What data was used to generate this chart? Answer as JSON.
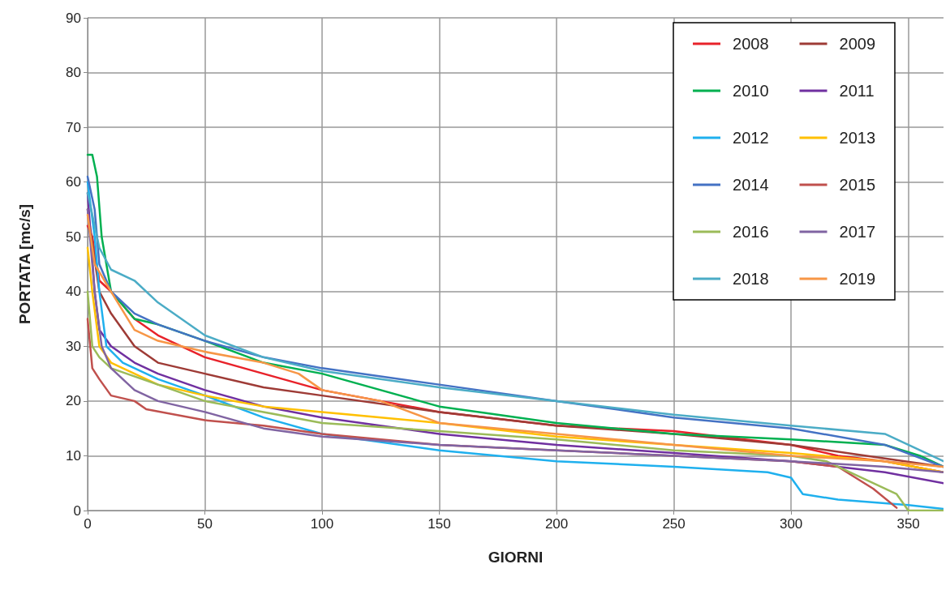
{
  "chart_data": {
    "type": "line",
    "xlabel": "GIORNI",
    "ylabel": "PORTATA [mc/s]",
    "xlim": [
      0,
      365
    ],
    "xticks": [
      0,
      50,
      100,
      150,
      200,
      250,
      300,
      350
    ],
    "ylim": [
      0,
      90
    ],
    "yticks": [
      0,
      10,
      20,
      30,
      40,
      50,
      60,
      70,
      80,
      90
    ],
    "grid": true,
    "legend": "top right",
    "marker": "none",
    "line_style": "solid",
    "series": [
      {
        "name": "2008",
        "color": "#e8222a",
        "x": [
          0,
          2,
          5,
          10,
          20,
          30,
          50,
          75,
          100,
          125,
          150,
          200,
          250,
          300,
          320,
          340,
          365
        ],
        "values": [
          52,
          50,
          42,
          40,
          35,
          32,
          28,
          25,
          22,
          20,
          18,
          15.5,
          14.5,
          12,
          10,
          9,
          7
        ]
      },
      {
        "name": "2009",
        "color": "#9e3b36",
        "x": [
          0,
          5,
          10,
          20,
          30,
          50,
          75,
          100,
          150,
          200,
          250,
          300,
          340,
          365
        ],
        "values": [
          55,
          40,
          36,
          30,
          27,
          25,
          22.5,
          21,
          18,
          15.5,
          14,
          12,
          9.5,
          8
        ]
      },
      {
        "name": "2010",
        "color": "#00b050",
        "x": [
          0,
          2,
          4,
          6,
          10,
          20,
          30,
          50,
          75,
          100,
          150,
          200,
          250,
          300,
          340,
          355,
          365
        ],
        "values": [
          65,
          65,
          61,
          50,
          40,
          35,
          34,
          31,
          27,
          25,
          19,
          16,
          14,
          13,
          12,
          10,
          8
        ]
      },
      {
        "name": "2011",
        "color": "#7030a0",
        "x": [
          0,
          3,
          5,
          10,
          20,
          30,
          50,
          75,
          100,
          150,
          200,
          250,
          300,
          340,
          365
        ],
        "values": [
          58,
          40,
          33,
          30,
          27,
          25,
          22,
          19,
          17,
          14,
          12,
          10.5,
          9,
          7,
          5
        ]
      },
      {
        "name": "2012",
        "color": "#1fb0ee",
        "x": [
          0,
          3,
          5,
          8,
          15,
          30,
          50,
          75,
          100,
          150,
          200,
          250,
          290,
          300,
          305,
          320,
          350,
          365
        ],
        "values": [
          60,
          50,
          40,
          30,
          27,
          24,
          21,
          17,
          14,
          11,
          9,
          8,
          7,
          6,
          3,
          2,
          1,
          0.3
        ]
      },
      {
        "name": "2013",
        "color": "#ffc000",
        "x": [
          0,
          2,
          5,
          10,
          20,
          30,
          50,
          75,
          100,
          150,
          200,
          250,
          300,
          340,
          365
        ],
        "values": [
          48,
          40,
          30,
          27,
          25,
          23,
          21,
          19,
          18,
          16,
          13.5,
          12,
          10.5,
          9,
          7
        ]
      },
      {
        "name": "2014",
        "color": "#4472c4",
        "x": [
          0,
          3,
          5,
          10,
          20,
          30,
          50,
          75,
          100,
          150,
          200,
          250,
          300,
          340,
          365
        ],
        "values": [
          61,
          55,
          45,
          40,
          36,
          34,
          31,
          28,
          26,
          23,
          20,
          17,
          15,
          12,
          8
        ]
      },
      {
        "name": "2015",
        "color": "#c0504d",
        "x": [
          0,
          2,
          5,
          10,
          20,
          25,
          50,
          75,
          100,
          150,
          200,
          250,
          300,
          320,
          335,
          345
        ],
        "values": [
          35,
          26,
          24,
          21,
          20,
          18.5,
          16.5,
          15.5,
          14,
          12,
          11,
          10,
          9,
          8,
          4,
          0.5
        ]
      },
      {
        "name": "2016",
        "color": "#9bbb59",
        "x": [
          0,
          2,
          5,
          10,
          30,
          50,
          75,
          100,
          150,
          200,
          250,
          300,
          315,
          330,
          345,
          350,
          365
        ],
        "values": [
          40,
          30,
          28,
          26,
          23,
          20,
          18,
          16,
          14.5,
          13,
          11,
          10,
          9,
          6,
          3,
          0,
          0
        ]
      },
      {
        "name": "2017",
        "color": "#8064a2",
        "x": [
          0,
          3,
          6,
          10,
          20,
          30,
          50,
          75,
          100,
          150,
          200,
          250,
          300,
          340,
          365
        ],
        "values": [
          55,
          40,
          30,
          26,
          22,
          20,
          18,
          15,
          13.5,
          12,
          11,
          10,
          9,
          8,
          7
        ]
      },
      {
        "name": "2018",
        "color": "#4bacc6",
        "x": [
          0,
          5,
          10,
          20,
          30,
          50,
          75,
          100,
          150,
          200,
          250,
          300,
          340,
          355,
          365
        ],
        "values": [
          58,
          48,
          44,
          42,
          38,
          32,
          28,
          25.5,
          22.5,
          20,
          17.5,
          15.5,
          14,
          11,
          9
        ]
      },
      {
        "name": "2019",
        "color": "#f79646",
        "x": [
          0,
          3,
          10,
          20,
          30,
          50,
          75,
          90,
          100,
          125,
          150,
          200,
          250,
          300,
          340,
          365
        ],
        "values": [
          54,
          45,
          40,
          33,
          31,
          29,
          27,
          25,
          22,
          20,
          16,
          14,
          12,
          10,
          9,
          8
        ]
      }
    ]
  }
}
